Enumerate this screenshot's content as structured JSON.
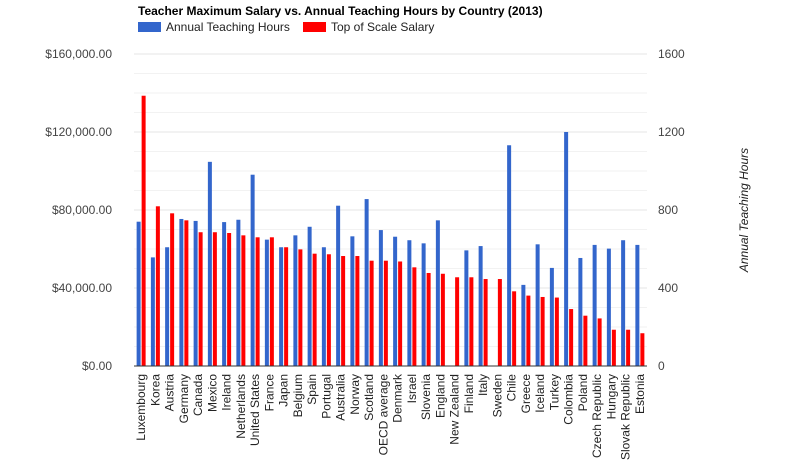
{
  "chart_data": {
    "type": "bar",
    "title": "Teacher Maximum Salary vs. Annual Teaching Hours by Country (2013)",
    "xlabel": "",
    "ylabel_left": "",
    "ylabel_right": "Annual Teaching Hours",
    "ylim_left": [
      0,
      160000
    ],
    "ylim_right": [
      0,
      1600
    ],
    "yticks_left": [
      "$0.00",
      "$40,000.00",
      "$80,000.00",
      "$120,000.00",
      "$160,000.00"
    ],
    "yticks_left_values": [
      0,
      40000,
      80000,
      120000,
      160000
    ],
    "yticks_right": [
      "0",
      "400",
      "800",
      "1200",
      "1600"
    ],
    "yticks_right_values": [
      0,
      400,
      800,
      1200,
      1600
    ],
    "grid": true,
    "legend_position": "top-left",
    "categories": [
      "Luxembourg",
      "Korea",
      "Austria",
      "Germany",
      "Canada",
      "Mexico",
      "Ireland",
      "Netherlands",
      "United States",
      "France",
      "Japan",
      "Belgium",
      "Spain",
      "Portugal",
      "Australia",
      "Norway",
      "Scotland",
      "OECD average",
      "Denmark",
      "Israel",
      "Slovenia",
      "England",
      "New Zealand",
      "Finland",
      "Italy",
      "Sweden",
      "Chile",
      "Greece",
      "Iceland",
      "Turkey",
      "Colombia",
      "Poland",
      "Czech Republic",
      "Hungary",
      "Slovak Republic",
      "Estonia"
    ],
    "series": [
      {
        "name": "Annual Teaching Hours",
        "axis": "right",
        "color": "#3366cc",
        "values": [
          740,
          557,
          609,
          754,
          744,
          1047,
          738,
          750,
          981,
          648,
          609,
          670,
          714,
          609,
          822,
          665,
          856,
          697,
          663,
          645,
          629,
          747,
          null,
          593,
          615,
          null,
          1132,
          416,
          624,
          503,
          1200,
          554,
          621,
          602,
          645,
          621
        ]
      },
      {
        "name": "Top of Scale Salary",
        "axis": "left",
        "color": "#ff0000",
        "values": [
          138600,
          81900,
          78300,
          74700,
          68600,
          68600,
          68200,
          67000,
          66000,
          66000,
          60900,
          59800,
          57600,
          57300,
          56400,
          56400,
          54000,
          54000,
          53600,
          50600,
          47700,
          47300,
          45500,
          45500,
          44600,
          44600,
          38300,
          36100,
          35400,
          35100,
          29200,
          25800,
          24400,
          18600,
          18600,
          16800
        ]
      }
    ]
  }
}
